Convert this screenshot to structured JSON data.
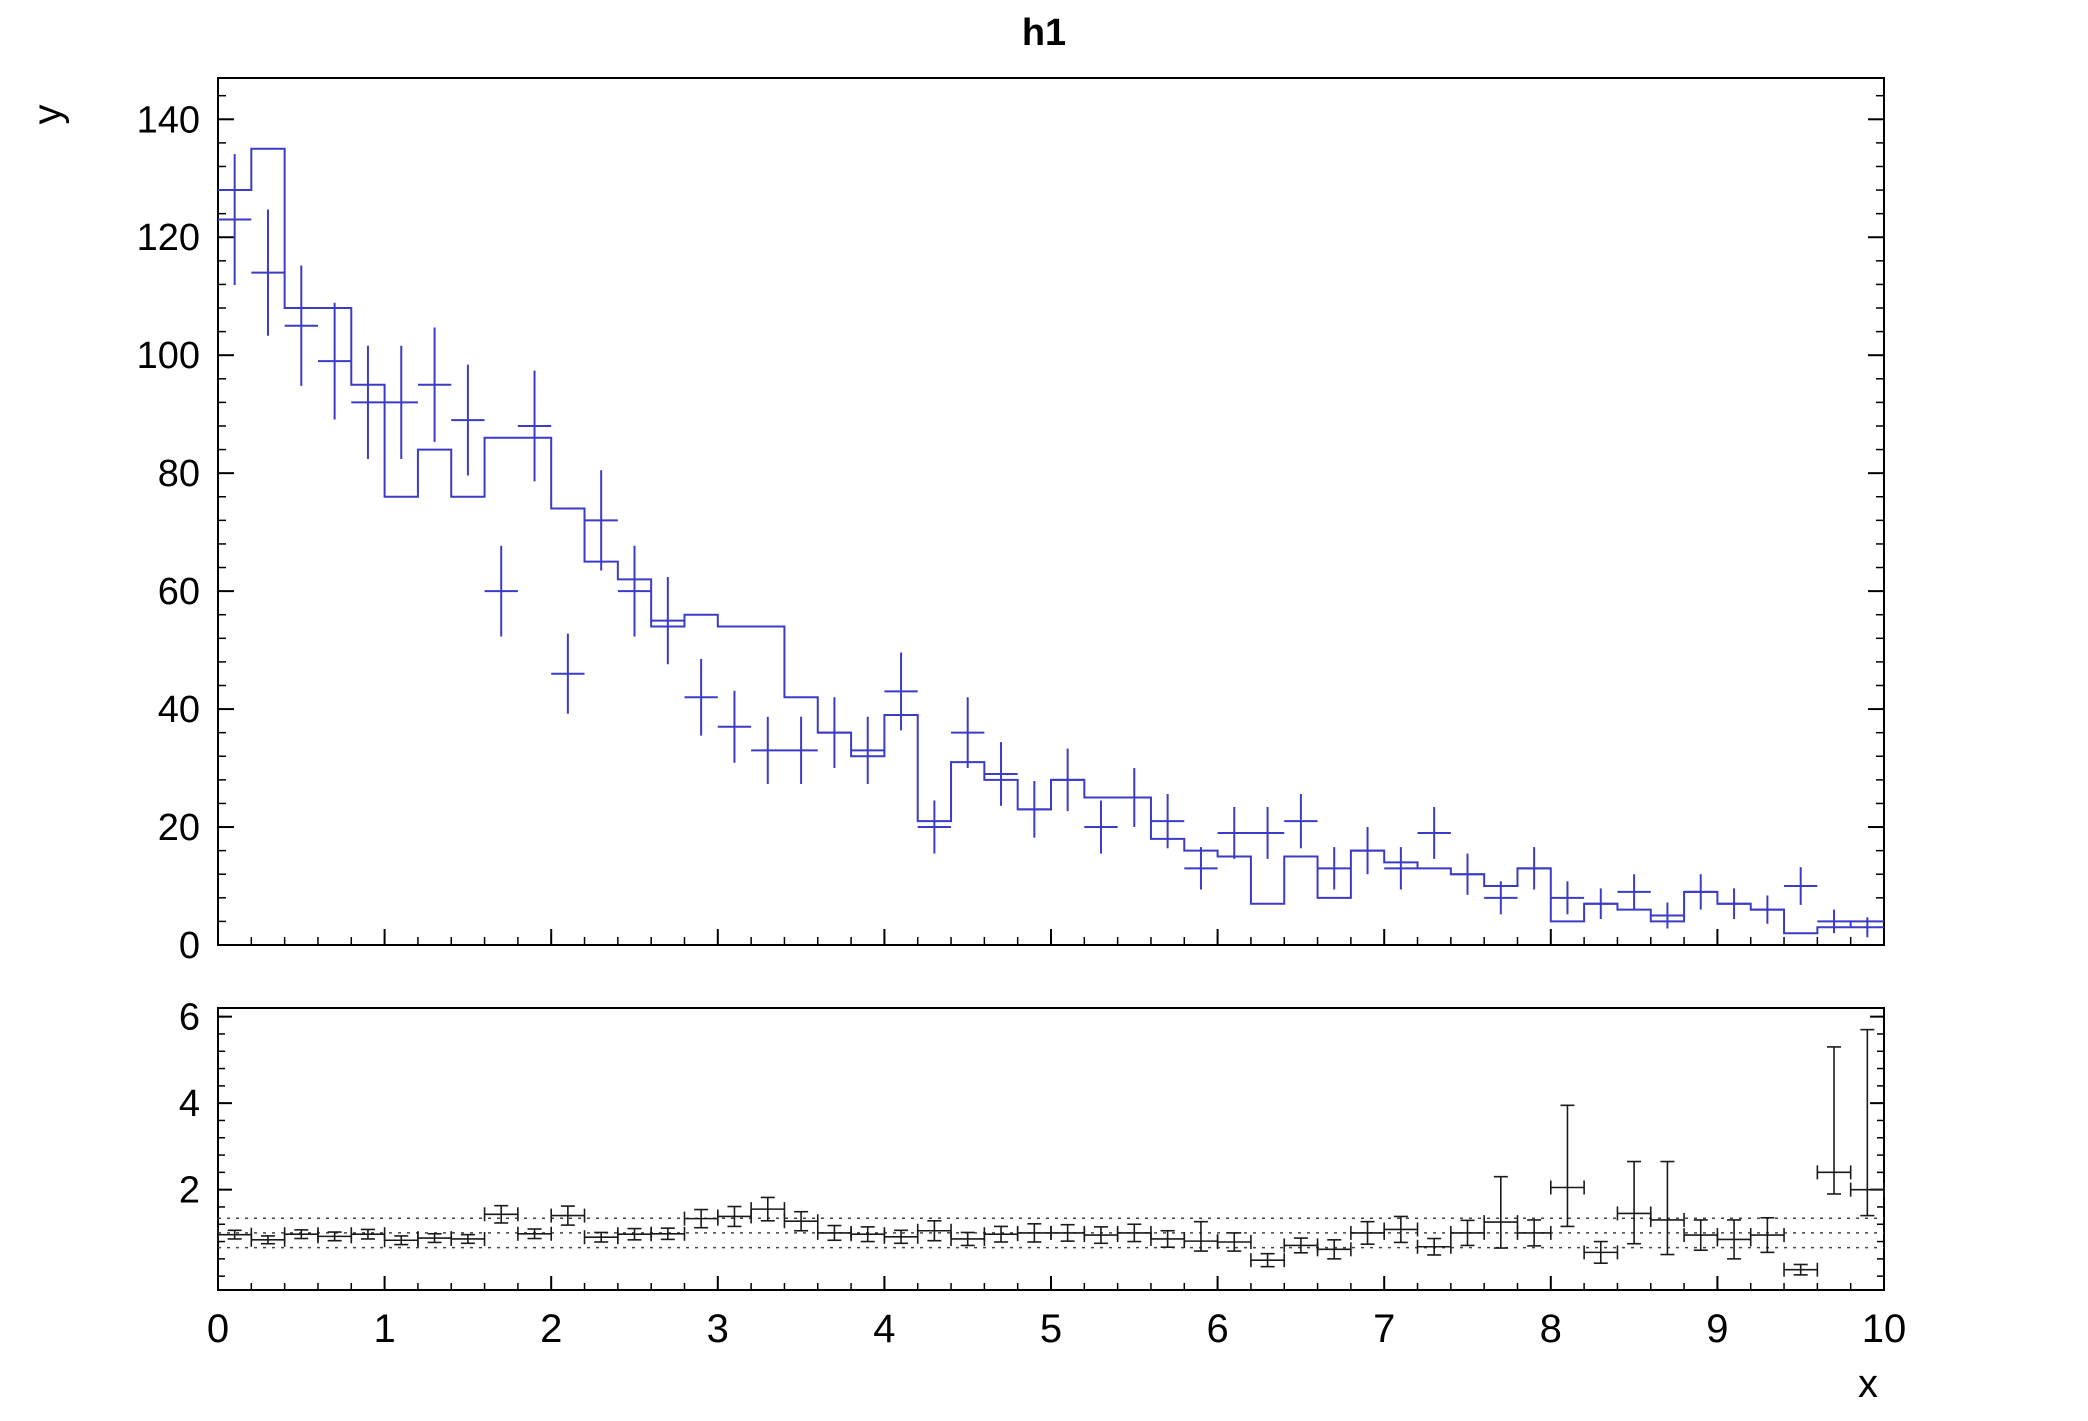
{
  "title": "h1",
  "axes": {
    "x_label": "x",
    "y_label": "y"
  },
  "colors": {
    "hist": "#3b3bc8",
    "points": "#3b3bc8",
    "ratio_points": "#1a1a1a",
    "frame": "#000000",
    "dotted": "#444444",
    "background": "#ffffff"
  },
  "chart_data": [
    {
      "type": "bar",
      "subtype": "step-histogram-with-error-points",
      "title": "h1",
      "xlabel": "x",
      "ylabel": "y",
      "xlim": [
        0,
        10
      ],
      "ylim": [
        0,
        147
      ],
      "x_ticks": [
        0,
        1,
        2,
        3,
        4,
        5,
        6,
        7,
        8,
        9,
        10
      ],
      "y_ticks": [
        0,
        20,
        40,
        60,
        80,
        100,
        120,
        140
      ],
      "x_minor_step": 0.2,
      "y_minor_step": 4,
      "bin_width": 0.2,
      "grid": false,
      "legend": "none",
      "hist_values": [
        128,
        135,
        108,
        108,
        95,
        76,
        84,
        76,
        86,
        86,
        74,
        65,
        62,
        54,
        56,
        54,
        54,
        42,
        36,
        32,
        39,
        21,
        31,
        28,
        23,
        28,
        25,
        25,
        18,
        16,
        15,
        7,
        15,
        8,
        16,
        14,
        13,
        12,
        10,
        13,
        4,
        7,
        6,
        4,
        9,
        7,
        6,
        2,
        3,
        4
      ],
      "points": {
        "y": [
          123,
          114,
          105,
          99,
          92,
          92,
          95,
          89,
          60,
          88,
          46,
          72,
          60,
          55,
          42,
          37,
          33,
          33,
          36,
          33,
          43,
          20,
          36,
          29,
          23,
          28,
          20,
          25,
          21,
          13,
          19,
          19,
          21,
          13,
          16,
          13,
          19,
          12,
          8,
          13,
          8,
          7,
          9,
          5,
          9,
          7,
          6,
          10,
          4,
          3
        ],
        "yerr": [
          11.1,
          10.7,
          10.2,
          9.9,
          9.6,
          9.6,
          9.7,
          9.4,
          7.7,
          9.4,
          6.8,
          8.5,
          7.7,
          7.4,
          6.5,
          6.1,
          5.7,
          5.7,
          6,
          5.7,
          6.6,
          4.5,
          6,
          5.4,
          4.8,
          5.3,
          4.5,
          5,
          4.6,
          3.6,
          4.4,
          4.4,
          4.6,
          3.6,
          4,
          3.6,
          4.4,
          3.5,
          2.8,
          3.6,
          2.8,
          2.6,
          3,
          2.2,
          3,
          2.6,
          2.4,
          3.2,
          2,
          1.7
        ]
      }
    },
    {
      "type": "scatter",
      "subtype": "ratio-panel",
      "xlim": [
        0,
        10
      ],
      "ylim": [
        -0.32,
        6.2
      ],
      "y_ticks": [
        2,
        4,
        6
      ],
      "x_ticks": [
        0,
        1,
        2,
        3,
        4,
        5,
        6,
        7,
        8,
        9,
        10
      ],
      "x_minor_step": 0.2,
      "y_minor_step": 0.4,
      "bin_width": 0.2,
      "xerr_half": 0.1,
      "dotted_lines": [
        0.66,
        1.0,
        1.34
      ],
      "y": [
        0.96,
        0.84,
        0.97,
        0.92,
        0.97,
        0.83,
        0.88,
        0.86,
        1.43,
        0.98,
        1.4,
        0.9,
        0.97,
        0.98,
        1.33,
        1.38,
        1.55,
        1.27,
        1.0,
        0.97,
        0.91,
        1.05,
        0.86,
        0.97,
        1.0,
        1.0,
        0.95,
        1.0,
        0.86,
        0.81,
        0.79,
        0.37,
        0.71,
        0.62,
        1.0,
        1.08,
        0.68,
        1.0,
        1.25,
        1.0,
        2.05,
        0.55,
        1.45,
        1.3,
        0.95,
        0.85,
        0.95,
        0.15,
        2.4,
        2.0
      ],
      "err_lo": [
        0.1,
        0.09,
        0.1,
        0.1,
        0.11,
        0.1,
        0.1,
        0.1,
        0.2,
        0.11,
        0.22,
        0.11,
        0.13,
        0.13,
        0.21,
        0.23,
        0.27,
        0.22,
        0.17,
        0.17,
        0.15,
        0.23,
        0.15,
        0.18,
        0.21,
        0.19,
        0.19,
        0.2,
        0.19,
        0.23,
        0.21,
        0.15,
        0.17,
        0.22,
        0.26,
        0.3,
        0.19,
        0.29,
        0.6,
        0.3,
        0.9,
        0.25,
        0.7,
        0.8,
        0.35,
        0.45,
        0.4,
        0.12,
        0.5,
        0.6
      ],
      "err_hi": [
        0.1,
        0.09,
        0.1,
        0.1,
        0.11,
        0.1,
        0.1,
        0.1,
        0.2,
        0.11,
        0.22,
        0.11,
        0.13,
        0.13,
        0.21,
        0.23,
        0.27,
        0.22,
        0.17,
        0.17,
        0.15,
        0.23,
        0.15,
        0.18,
        0.21,
        0.19,
        0.19,
        0.2,
        0.19,
        0.45,
        0.21,
        0.15,
        0.17,
        0.22,
        0.26,
        0.3,
        0.19,
        0.29,
        1.05,
        0.3,
        1.9,
        0.25,
        1.2,
        1.35,
        0.35,
        0.45,
        0.4,
        0.12,
        2.9,
        3.7
      ]
    }
  ]
}
